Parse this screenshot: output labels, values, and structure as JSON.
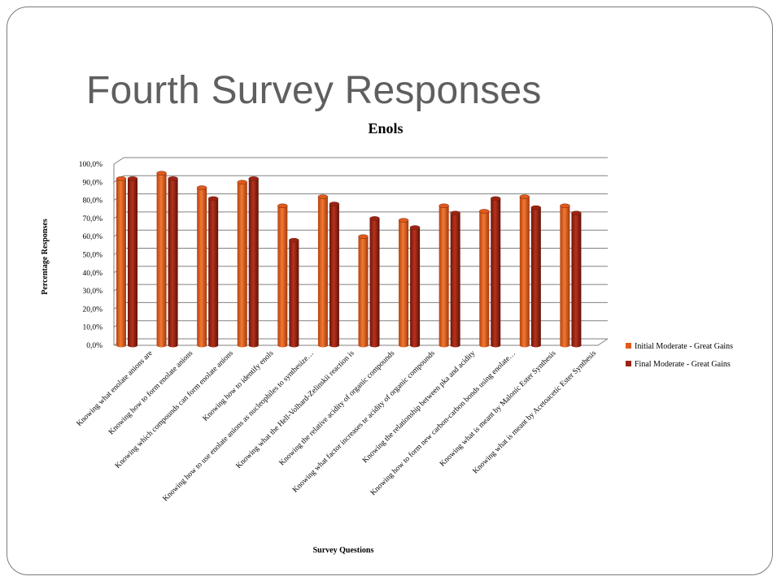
{
  "slide": {
    "title": "Fourth Survey Responses"
  },
  "colors": {
    "initial": "#e05a1c",
    "final": "#9b2414",
    "grid": "#808080"
  },
  "chart_data": {
    "type": "bar",
    "title": "Enols",
    "xlabel": "Survey Questions",
    "ylabel": "Percentage Responses",
    "ylim": [
      0,
      100
    ],
    "y_ticks": [
      "0,0%",
      "10,0%",
      "20,0%",
      "30,0%",
      "40,0%",
      "50,0%",
      "60,0%",
      "70,0%",
      "80,0%",
      "90,0%",
      "100,0%"
    ],
    "grid": true,
    "legend_position": "right",
    "categories": [
      "Knowing what enolate anions are",
      "Knowing how to form enolate anions",
      "Knowing which compounds can form enolate anions",
      "Knowing how to identify enols",
      "Knowing how to use enolate anions as nucleophiles to synthesize…",
      "Knowing what the Hell-Volhard-Zelinskii reaction is",
      "Knowing the relative acidity of organic compounds",
      "Knowing what factor increases te acidity of organic compounds",
      "Knowing the relationship between pka and acidity",
      "Knowing how to form new carbon-carbon bonds using enolate…",
      "Knowing what is meant by Malonic Ester Synthesis",
      "Knowing what is meant by Acetoacetic Ester Synthesis"
    ],
    "series": [
      {
        "name": "Initial Moderate - Great Gains",
        "values": [
          92,
          95,
          87,
          90,
          77,
          82,
          60,
          69,
          77,
          74,
          82,
          77
        ]
      },
      {
        "name": "Final Moderate - Great Gains",
        "values": [
          92,
          92,
          81,
          92,
          58,
          78,
          70,
          65,
          73,
          81,
          76,
          73
        ]
      }
    ]
  }
}
